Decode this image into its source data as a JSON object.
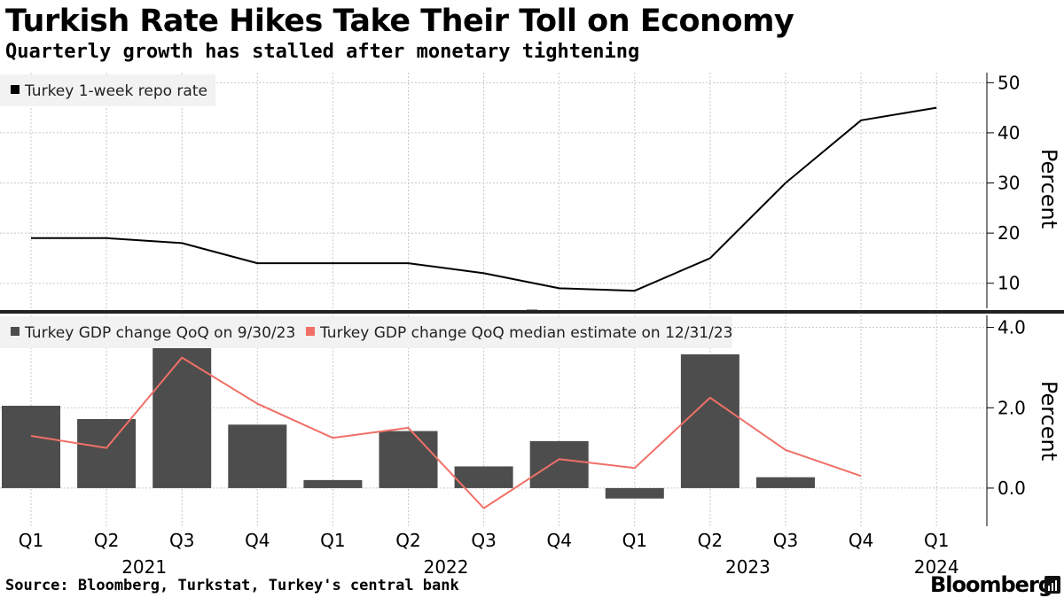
{
  "header": {
    "title": "Turkish Rate Hikes Take Their Toll on Economy",
    "subtitle": "Quarterly growth has stalled after monetary tightening"
  },
  "footer": {
    "source": "Source: Bloomberg, Turkstat, Turkey's central bank",
    "brand": "Bloomberg"
  },
  "chart_data": [
    {
      "type": "line",
      "title": "Turkey 1-week repo rate",
      "categories": [
        "Q1",
        "Q2",
        "Q3",
        "Q4",
        "Q1",
        "Q2",
        "Q3",
        "Q4",
        "Q1",
        "Q2",
        "Q3",
        "Q4",
        "Q1"
      ],
      "years": [
        {
          "label": "2021",
          "span": [
            0,
            3
          ]
        },
        {
          "label": "2022",
          "span": [
            4,
            7
          ]
        },
        {
          "label": "2023",
          "span": [
            8,
            11
          ]
        },
        {
          "label": "2024",
          "span": [
            12,
            12
          ]
        }
      ],
      "series": [
        {
          "name": "Turkey 1-week repo rate",
          "color": "#000000",
          "values": [
            19,
            19,
            18,
            14,
            14,
            14,
            12,
            9,
            8.5,
            15,
            30,
            42.5,
            45
          ]
        }
      ],
      "ylabel": "Percent",
      "yticks": [
        10,
        20,
        30,
        40,
        50
      ],
      "ylim": [
        5,
        52
      ],
      "legend_position": "top-left",
      "grid": true
    },
    {
      "type": "bar",
      "categories": [
        "Q1",
        "Q2",
        "Q3",
        "Q4",
        "Q1",
        "Q2",
        "Q3",
        "Q4",
        "Q1",
        "Q2",
        "Q3",
        "Q4",
        "Q1"
      ],
      "series": [
        {
          "name": "Turkey GDP change QoQ on 9/30/23",
          "color": "#4d4d4d",
          "kind": "bar",
          "values": [
            2.05,
            1.72,
            3.68,
            1.58,
            0.2,
            1.42,
            0.54,
            1.17,
            -0.26,
            3.33,
            0.27,
            null,
            null
          ]
        },
        {
          "name": "Turkey GDP change QoQ median estimate on 12/31/23",
          "color": "#f07067",
          "kind": "line",
          "values": [
            1.3,
            1.0,
            3.25,
            2.1,
            1.25,
            1.5,
            -0.5,
            0.72,
            0.5,
            2.25,
            0.95,
            0.3,
            null
          ]
        }
      ],
      "ylabel": "Percent",
      "yticks": [
        0.0,
        2.0,
        4.0
      ],
      "yticklabels": [
        "0.0",
        "2.0",
        "4.0"
      ],
      "ylim": [
        -0.95,
        4.3
      ],
      "legend_position": "top-left",
      "grid": true
    }
  ]
}
